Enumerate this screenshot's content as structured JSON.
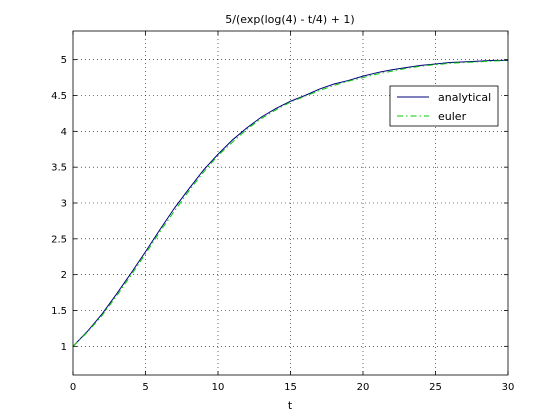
{
  "chart_data": {
    "type": "line",
    "title": "5/(exp(log(4) - t/4) + 1)",
    "xlabel": "t",
    "ylabel": "",
    "xlim": [
      0,
      30
    ],
    "ylim": [
      0.6,
      5.4
    ],
    "x_ticks": [
      0,
      5,
      10,
      15,
      20,
      25,
      30
    ],
    "x_tick_labels": [
      "0",
      "5",
      "10",
      "15",
      "20",
      "25",
      "30"
    ],
    "y_ticks": [
      1,
      1.5,
      2,
      2.5,
      3,
      3.5,
      4,
      4.5,
      5
    ],
    "y_tick_labels": [
      "1",
      "1.5",
      "2",
      "2.5",
      "3",
      "3.5",
      "4",
      "4.5",
      "5"
    ],
    "grid": true,
    "legend_position": "top-right",
    "x": [
      0,
      1,
      2,
      3,
      4,
      5,
      6,
      7,
      8,
      9,
      10,
      11,
      12,
      13,
      14,
      15,
      16,
      17,
      18,
      19,
      20,
      21,
      22,
      23,
      24,
      25,
      26,
      27,
      28,
      29,
      30
    ],
    "series": [
      {
        "name": "analytical",
        "color": "#00007f",
        "line_style": "solid",
        "values": [
          1.0,
          1.21,
          1.45,
          1.73,
          2.02,
          2.32,
          2.63,
          2.93,
          3.2,
          3.46,
          3.68,
          3.88,
          4.05,
          4.2,
          4.32,
          4.42,
          4.5,
          4.59,
          4.66,
          4.71,
          4.77,
          4.82,
          4.86,
          4.89,
          4.92,
          4.94,
          4.96,
          4.97,
          4.98,
          4.99,
          4.99
        ]
      },
      {
        "name": "euler",
        "color": "#00cc00",
        "line_style": "dashdot",
        "values": [
          1.0,
          1.2,
          1.43,
          1.7,
          1.99,
          2.29,
          2.6,
          2.89,
          3.17,
          3.43,
          3.66,
          3.85,
          4.03,
          4.18,
          4.3,
          4.41,
          4.49,
          4.57,
          4.64,
          4.7,
          4.75,
          4.8,
          4.84,
          4.88,
          4.91,
          4.93,
          4.95,
          4.96,
          4.97,
          4.98,
          4.99
        ]
      }
    ]
  }
}
